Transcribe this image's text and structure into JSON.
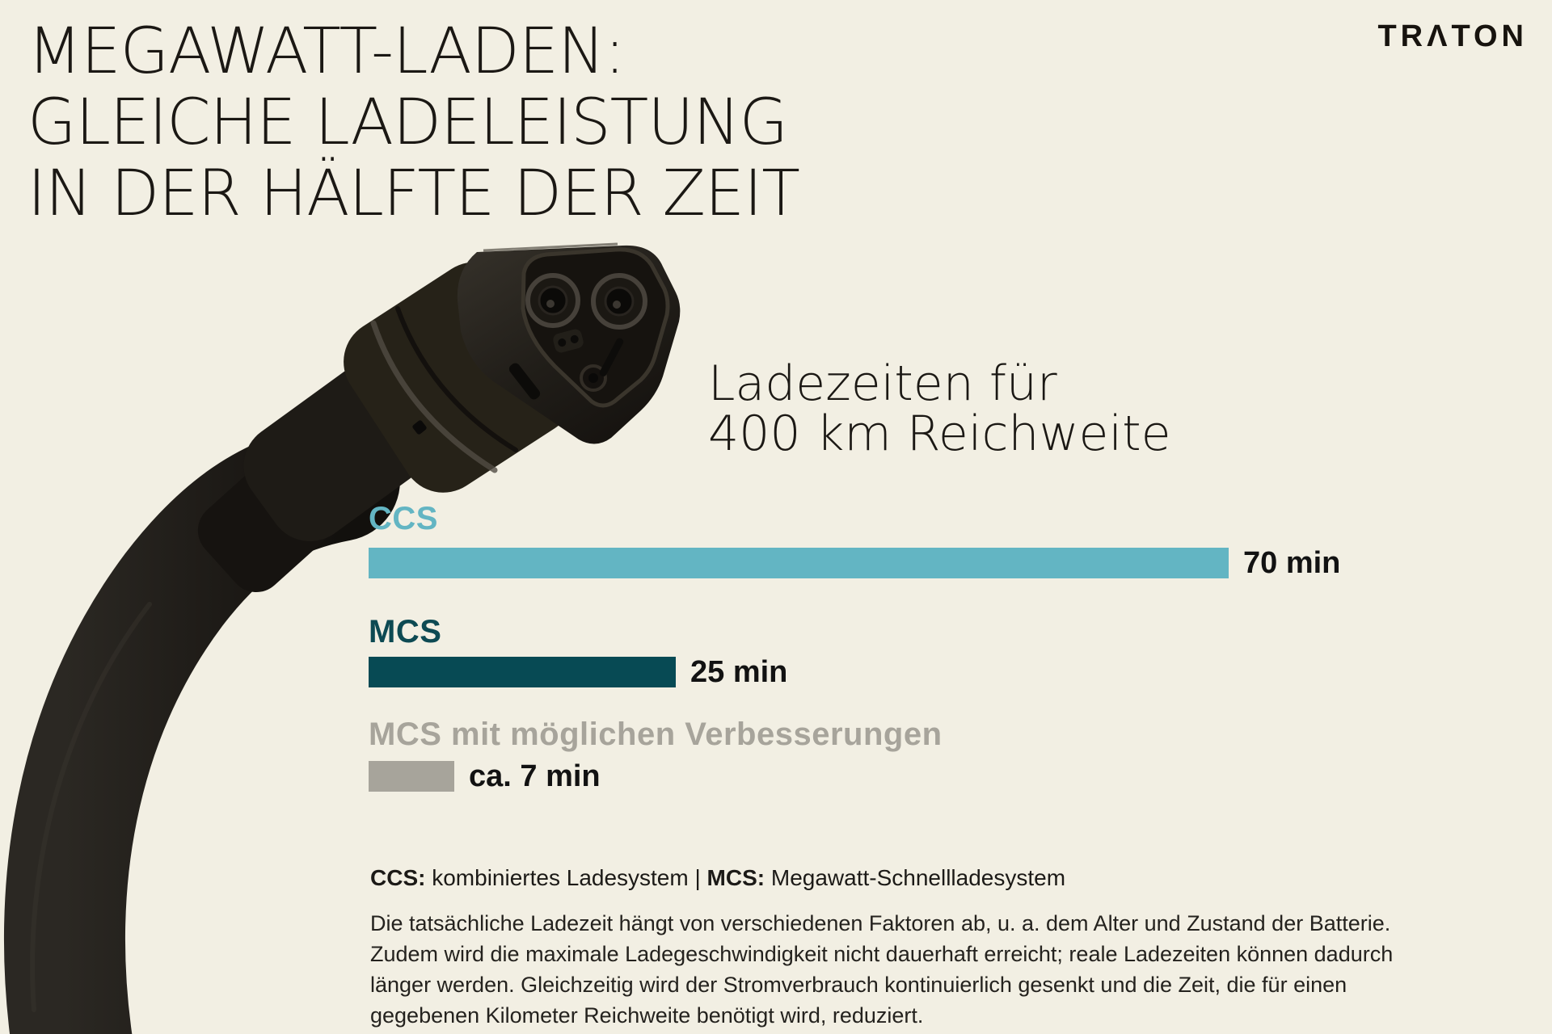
{
  "page": {
    "background": "#f2efe3"
  },
  "logo": {
    "text": "TRATON",
    "display": "TRΛTON",
    "color": "#17130e"
  },
  "header": {
    "title": "MEGAWATT-LADEN:\nGLEICHE LADELEISTUNG\nIN DER HÄLFTE DER ZEIT"
  },
  "chart_data": {
    "type": "bar",
    "orientation": "horizontal",
    "title": "Ladezeiten für\n400 km Reichweite",
    "categories": [
      "CCS",
      "MCS",
      "MCS mit möglichen Verbesserungen"
    ],
    "values": [
      70,
      25,
      7
    ],
    "value_labels": [
      "70 min",
      "25 min",
      "ca. 7 min"
    ],
    "unit": "min",
    "xlim": [
      0,
      70
    ],
    "bar_colors": [
      "#63b5c3",
      "#074a54",
      "#a7a49b"
    ],
    "label_colors": [
      "#63b5c3",
      "#0d4a53",
      "#a7a49b"
    ],
    "value_color": "#121212",
    "legend_position": "none",
    "grid": false
  },
  "footnote": {
    "ccs_term": "CCS:",
    "ccs_definition": " kombiniertes Ladesystem | ",
    "mcs_term": "MCS:",
    "mcs_definition": " Megawatt-Schnellladesystem"
  },
  "disclaimer": "Die tatsächliche Ladezeit hängt von verschiedenen Faktoren ab, u. a. dem Alter und Zustand der Batterie. Zudem wird die maximale Ladegeschwindigkeit nicht dauerhaft erreicht; reale Ladezeiten können dadurch länger werden. Gleichzeitig wird der Stromverbrauch kontinuierlich gesenkt und die Zeit, die für einen gegebenen Kilometer Reichweite benötigt wird, reduziert."
}
